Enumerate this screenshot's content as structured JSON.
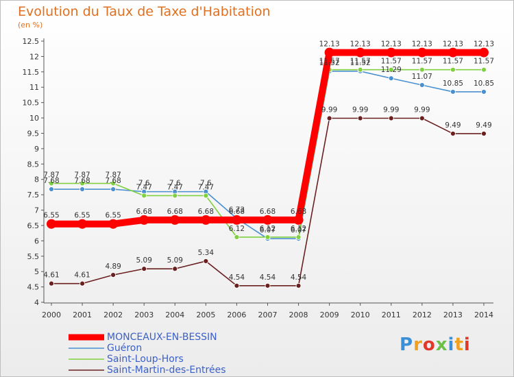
{
  "chart_data": {
    "type": "line",
    "title": "Evolution du Taux de Taxe d'Habitation",
    "unit_label": "(en %)",
    "x": [
      "2000",
      "2001",
      "2002",
      "2003",
      "2004",
      "2005",
      "2006",
      "2007",
      "2008",
      "2009",
      "2010",
      "2011",
      "2012",
      "2013",
      "2014"
    ],
    "ylim": [
      4,
      12.5
    ],
    "y_ticks": [
      "4",
      "4.5",
      "5",
      "5.5",
      "6",
      "6.5",
      "7",
      "7.5",
      "8",
      "8.5",
      "9",
      "9.5",
      "10",
      "10.5",
      "11",
      "11.5",
      "12",
      "12.5"
    ],
    "grid": false,
    "legend_position": "bottom-left",
    "series": [
      {
        "name": "MONCEAUX-EN-BESSIN",
        "color": "#ff0000",
        "values": [
          6.55,
          6.55,
          6.55,
          6.68,
          6.68,
          6.68,
          6.68,
          6.68,
          6.68,
          12.13,
          12.13,
          12.13,
          12.13,
          12.13,
          12.13
        ],
        "labels": [
          "6.55",
          "6.55",
          "6.55",
          "6.68",
          "6.68",
          "6.68",
          "6.68",
          "6.68",
          "6.68",
          "12.13",
          "12.13",
          "12.13",
          "12.13",
          "12.13",
          "12.13"
        ]
      },
      {
        "name": "Guéron",
        "color": "#4a90d0",
        "values": [
          7.68,
          7.68,
          7.68,
          7.6,
          7.6,
          7.6,
          6.73,
          6.07,
          6.07,
          11.52,
          11.52,
          11.29,
          11.07,
          10.85,
          10.85
        ],
        "labels": [
          "7.68",
          "7.68",
          "7.68",
          "7.6",
          "7.6",
          "7.6",
          "6.73",
          "6.07",
          "6.07",
          "11.52",
          "11.52",
          "11.29",
          "11.07",
          "10.85",
          "10.85"
        ]
      },
      {
        "name": "Saint-Loup-Hors",
        "color": "#80d040",
        "values": [
          7.87,
          7.87,
          7.87,
          7.47,
          7.47,
          7.47,
          6.12,
          6.12,
          6.12,
          11.57,
          11.57,
          11.57,
          11.57,
          11.57,
          11.57
        ],
        "labels": [
          "7.87",
          "7.87",
          "7.87",
          "7.47",
          "7.47",
          "7.47",
          "6.12",
          "6.12",
          "6.12",
          "11.57",
          "11.57",
          "11.57",
          "11.57",
          "11.57",
          "11.57"
        ]
      },
      {
        "name": "Saint-Martin-des-Entrées",
        "color": "#6b2020",
        "values": [
          4.61,
          4.61,
          4.89,
          5.09,
          5.09,
          5.34,
          4.54,
          4.54,
          4.54,
          9.99,
          9.99,
          9.99,
          9.99,
          9.49,
          9.49
        ],
        "labels": [
          "4.61",
          "4.61",
          "4.89",
          "5.09",
          "5.09",
          "5.34",
          "4.54",
          "4.54",
          "4.54",
          "9.99",
          "9.99",
          "9.99",
          "9.99",
          "9.49",
          "9.49"
        ]
      }
    ]
  },
  "logo": {
    "letters": [
      "P",
      "r",
      "o",
      "x",
      "i",
      "t",
      "i"
    ]
  }
}
